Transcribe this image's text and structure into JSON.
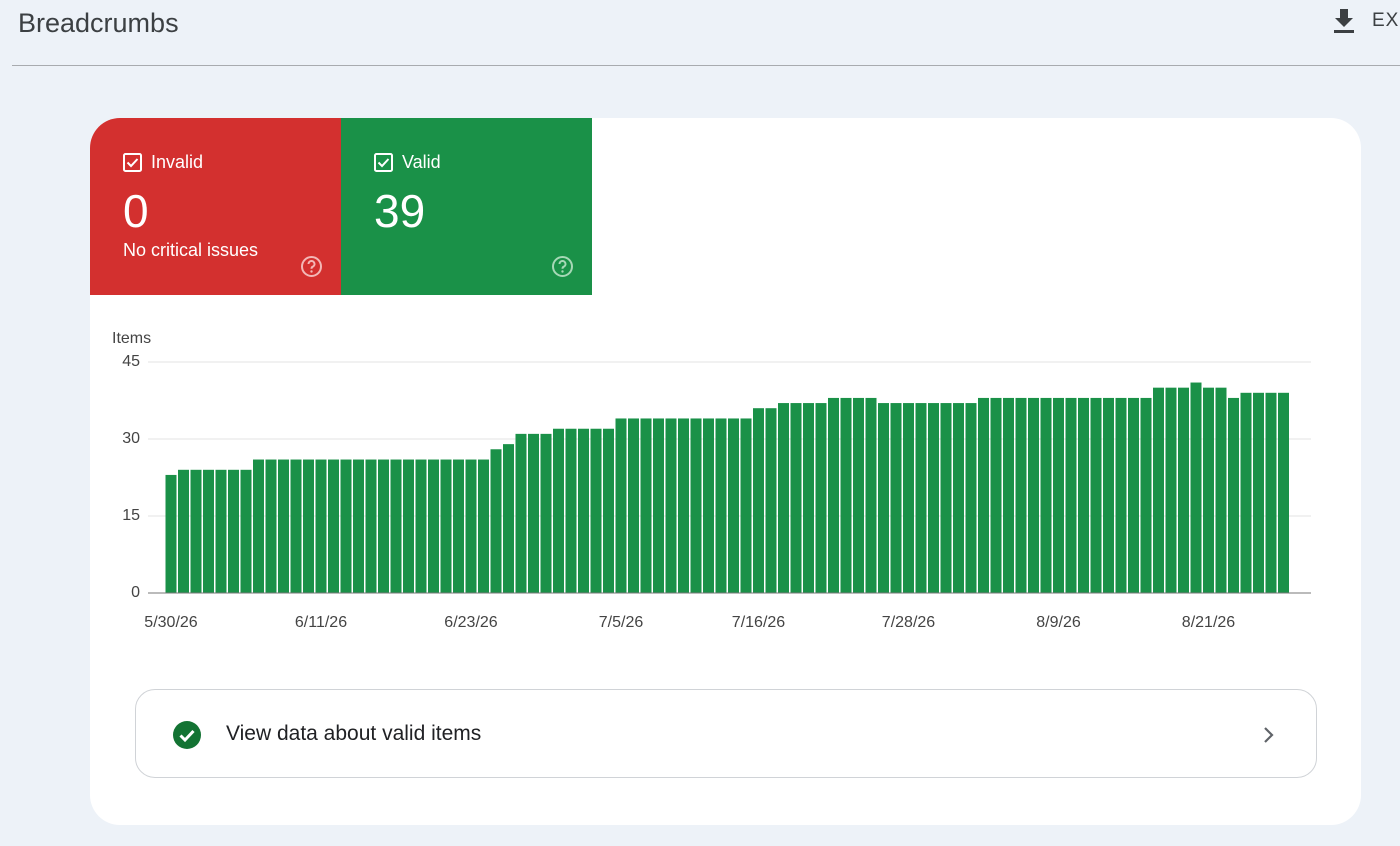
{
  "header": {
    "title": "Breadcrumbs",
    "action": "EXPORT"
  },
  "tiles": [
    {
      "label": "Invalid",
      "value": 0,
      "note": "No critical issues"
    },
    {
      "label": "Valid",
      "value": 39
    }
  ],
  "chart_data": {
    "type": "bar",
    "y_label": "Items",
    "categories": [
      "5/30/26",
      null,
      null,
      null,
      null,
      null,
      null,
      null,
      null,
      null,
      null,
      null,
      "6/11/26",
      null,
      null,
      null,
      null,
      null,
      null,
      null,
      null,
      null,
      null,
      null,
      "6/23/26",
      null,
      null,
      null,
      null,
      null,
      null,
      null,
      null,
      null,
      null,
      null,
      "7/5/26",
      null,
      null,
      null,
      null,
      null,
      null,
      null,
      null,
      null,
      null,
      "7/16/26",
      null,
      null,
      null,
      null,
      null,
      null,
      null,
      null,
      null,
      null,
      null,
      "7/28/26",
      null,
      null,
      null,
      null,
      null,
      null,
      null,
      null,
      null,
      null,
      null,
      "8/9/26",
      null,
      null,
      null,
      null,
      null,
      null,
      null,
      null,
      null,
      null,
      null,
      "8/21/26",
      null,
      null,
      null,
      null,
      null,
      null
    ],
    "values": [
      23,
      24,
      24,
      24,
      24,
      24,
      24,
      26,
      26,
      26,
      26,
      26,
      26,
      26,
      26,
      26,
      26,
      26,
      26,
      26,
      26,
      26,
      26,
      26,
      26,
      26,
      28,
      29,
      31,
      31,
      31,
      32,
      32,
      32,
      32,
      32,
      34,
      34,
      34,
      34,
      34,
      34,
      34,
      34,
      34,
      34,
      34,
      36,
      36,
      37,
      37,
      37,
      37,
      38,
      38,
      38,
      38,
      37,
      37,
      37,
      37,
      37,
      37,
      37,
      37,
      38,
      38,
      38,
      38,
      38,
      38,
      38,
      38,
      38,
      38,
      38,
      38,
      38,
      38,
      40,
      40,
      40,
      41,
      40,
      40,
      38,
      39,
      39,
      39,
      39
    ],
    "color": "#1a9148",
    "ylim": [
      0,
      45
    ],
    "yticks": [
      0,
      15,
      30,
      45
    ],
    "grid": true
  },
  "link": {
    "label": "View data about valid items"
  }
}
